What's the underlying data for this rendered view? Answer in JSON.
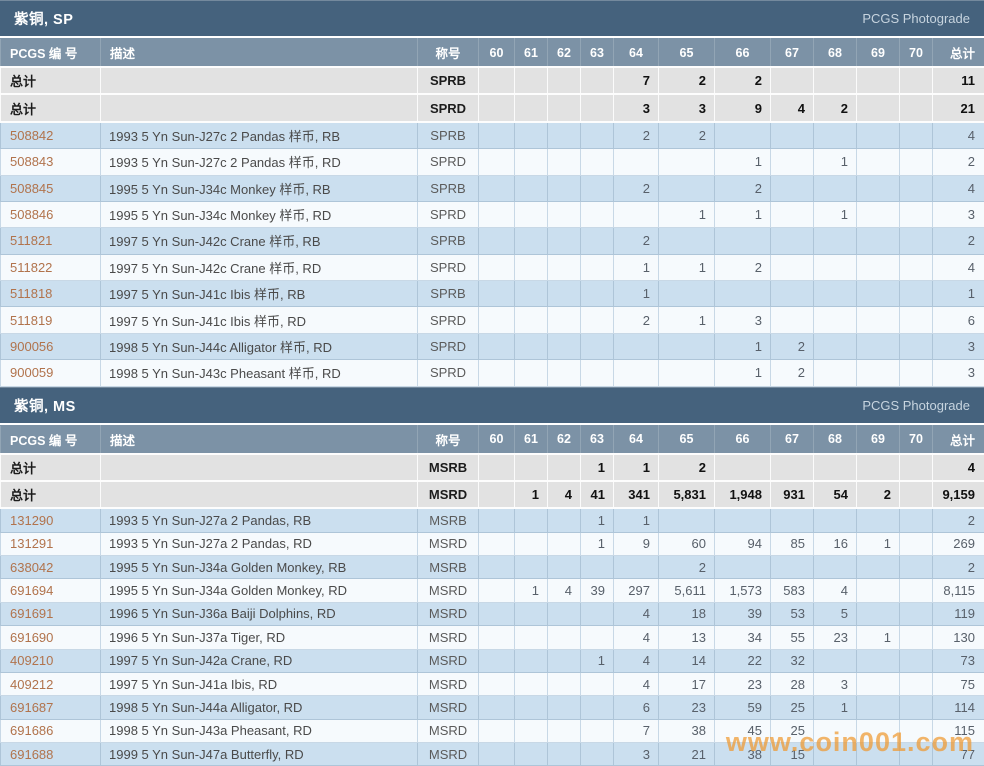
{
  "watermark": "www.coin001.com",
  "colors": {
    "section_header_bg": "#45627d",
    "column_header_bg": "#7c92a6",
    "totals_row_bg": "#e2e2e2",
    "row_blue_bg": "#cbdfef",
    "row_white_bg": "#f6fafd",
    "pcgs_number_color": "#b1734c",
    "watermark_color": "#ee982f"
  },
  "columns": [
    "PCGS 编 号",
    "描述",
    "称号",
    "60",
    "61",
    "62",
    "63",
    "64",
    "65",
    "66",
    "67",
    "68",
    "69",
    "70",
    "总计"
  ],
  "sections": [
    {
      "id": "sp",
      "title": "紫铜, SP",
      "photograde_label": "PCGS Photograde",
      "totals_label": "总计",
      "totals": [
        {
          "designation": "SPRB",
          "grades": [
            "",
            "",
            "",
            "",
            "7",
            "2",
            "2",
            "",
            "",
            "",
            ""
          ],
          "total": "11"
        },
        {
          "designation": "SPRD",
          "grades": [
            "",
            "",
            "",
            "",
            "3",
            "3",
            "9",
            "4",
            "2",
            "",
            ""
          ],
          "total": "21"
        }
      ],
      "rows": [
        {
          "pcgs_number": "508842",
          "description": "1993 5 Yn Sun-J27c 2 Pandas 样币, RB",
          "designation": "SPRB",
          "grades": [
            "",
            "",
            "",
            "",
            "2",
            "2",
            "",
            "",
            "",
            "",
            ""
          ],
          "total": "4"
        },
        {
          "pcgs_number": "508843",
          "description": "1993 5 Yn Sun-J27c 2 Pandas 样币, RD",
          "designation": "SPRD",
          "grades": [
            "",
            "",
            "",
            "",
            "",
            "",
            "1",
            "",
            "1",
            "",
            ""
          ],
          "total": "2"
        },
        {
          "pcgs_number": "508845",
          "description": "1995 5 Yn Sun-J34c Monkey 样币, RB",
          "designation": "SPRB",
          "grades": [
            "",
            "",
            "",
            "",
            "2",
            "",
            "2",
            "",
            "",
            "",
            ""
          ],
          "total": "4"
        },
        {
          "pcgs_number": "508846",
          "description": "1995 5 Yn Sun-J34c Monkey 样币, RD",
          "designation": "SPRD",
          "grades": [
            "",
            "",
            "",
            "",
            "",
            "1",
            "1",
            "",
            "1",
            "",
            ""
          ],
          "total": "3"
        },
        {
          "pcgs_number": "511821",
          "description": "1997 5 Yn Sun-J42c Crane 样币, RB",
          "designation": "SPRB",
          "grades": [
            "",
            "",
            "",
            "",
            "2",
            "",
            "",
            "",
            "",
            "",
            ""
          ],
          "total": "2"
        },
        {
          "pcgs_number": "511822",
          "description": "1997 5 Yn Sun-J42c Crane 样币, RD",
          "designation": "SPRD",
          "grades": [
            "",
            "",
            "",
            "",
            "1",
            "1",
            "2",
            "",
            "",
            "",
            ""
          ],
          "total": "4"
        },
        {
          "pcgs_number": "511818",
          "description": "1997 5 Yn Sun-J41c Ibis 样币, RB",
          "designation": "SPRB",
          "grades": [
            "",
            "",
            "",
            "",
            "1",
            "",
            "",
            "",
            "",
            "",
            ""
          ],
          "total": "1"
        },
        {
          "pcgs_number": "511819",
          "description": "1997 5 Yn Sun-J41c Ibis 样币, RD",
          "designation": "SPRD",
          "grades": [
            "",
            "",
            "",
            "",
            "2",
            "1",
            "3",
            "",
            "",
            "",
            ""
          ],
          "total": "6"
        },
        {
          "pcgs_number": "900056",
          "description": "1998 5 Yn Sun-J44c Alligator 样币, RD",
          "designation": "SPRD",
          "grades": [
            "",
            "",
            "",
            "",
            "",
            "",
            "1",
            "2",
            "",
            "",
            ""
          ],
          "total": "3"
        },
        {
          "pcgs_number": "900059",
          "description": "1998 5 Yn Sun-J43c Pheasant 样币, RD",
          "designation": "SPRD",
          "grades": [
            "",
            "",
            "",
            "",
            "",
            "",
            "1",
            "2",
            "",
            "",
            ""
          ],
          "total": "3"
        }
      ]
    },
    {
      "id": "ms",
      "title": "紫铜, MS",
      "photograde_label": "PCGS Photograde",
      "totals_label": "总计",
      "totals": [
        {
          "designation": "MSRB",
          "grades": [
            "",
            "",
            "",
            "1",
            "1",
            "2",
            "",
            "",
            "",
            "",
            ""
          ],
          "total": "4"
        },
        {
          "designation": "MSRD",
          "grades": [
            "",
            "1",
            "4",
            "41",
            "341",
            "5,831",
            "1,948",
            "931",
            "54",
            "2",
            ""
          ],
          "total": "9,159"
        }
      ],
      "rows": [
        {
          "pcgs_number": "131290",
          "description": "1993 5 Yn Sun-J27a 2 Pandas, RB",
          "designation": "MSRB",
          "grades": [
            "",
            "",
            "",
            "1",
            "1",
            "",
            "",
            "",
            "",
            "",
            ""
          ],
          "total": "2"
        },
        {
          "pcgs_number": "131291",
          "description": "1993 5 Yn Sun-J27a 2 Pandas, RD",
          "designation": "MSRD",
          "grades": [
            "",
            "",
            "",
            "1",
            "9",
            "60",
            "94",
            "85",
            "16",
            "1",
            ""
          ],
          "total": "269"
        },
        {
          "pcgs_number": "638042",
          "description": "1995 5 Yn Sun-J34a Golden Monkey, RB",
          "designation": "MSRB",
          "grades": [
            "",
            "",
            "",
            "",
            "",
            "2",
            "",
            "",
            "",
            "",
            ""
          ],
          "total": "2"
        },
        {
          "pcgs_number": "691694",
          "description": "1995 5 Yn Sun-J34a Golden Monkey, RD",
          "designation": "MSRD",
          "grades": [
            "",
            "1",
            "4",
            "39",
            "297",
            "5,611",
            "1,573",
            "583",
            "4",
            "",
            ""
          ],
          "total": "8,115"
        },
        {
          "pcgs_number": "691691",
          "description": "1996 5 Yn Sun-J36a Baiji Dolphins, RD",
          "designation": "MSRD",
          "grades": [
            "",
            "",
            "",
            "",
            "4",
            "18",
            "39",
            "53",
            "5",
            "",
            ""
          ],
          "total": "119"
        },
        {
          "pcgs_number": "691690",
          "description": "1996 5 Yn Sun-J37a Tiger, RD",
          "designation": "MSRD",
          "grades": [
            "",
            "",
            "",
            "",
            "4",
            "13",
            "34",
            "55",
            "23",
            "1",
            ""
          ],
          "total": "130"
        },
        {
          "pcgs_number": "409210",
          "description": "1997 5 Yn Sun-J42a Crane, RD",
          "designation": "MSRD",
          "grades": [
            "",
            "",
            "",
            "1",
            "4",
            "14",
            "22",
            "32",
            "",
            "",
            ""
          ],
          "total": "73"
        },
        {
          "pcgs_number": "409212",
          "description": "1997 5 Yn Sun-J41a Ibis, RD",
          "designation": "MSRD",
          "grades": [
            "",
            "",
            "",
            "",
            "4",
            "17",
            "23",
            "28",
            "3",
            "",
            ""
          ],
          "total": "75"
        },
        {
          "pcgs_number": "691687",
          "description": "1998 5 Yn Sun-J44a Alligator, RD",
          "designation": "MSRD",
          "grades": [
            "",
            "",
            "",
            "",
            "6",
            "23",
            "59",
            "25",
            "1",
            "",
            ""
          ],
          "total": "114"
        },
        {
          "pcgs_number": "691686",
          "description": "1998 5 Yn Sun-J43a Pheasant, RD",
          "designation": "MSRD",
          "grades": [
            "",
            "",
            "",
            "",
            "7",
            "38",
            "45",
            "25",
            "",
            "",
            ""
          ],
          "total": "115"
        },
        {
          "pcgs_number": "691688",
          "description": "1999 5 Yn Sun-J47a Butterfly, RD",
          "designation": "MSRD",
          "grades": [
            "",
            "",
            "",
            "",
            "3",
            "21",
            "38",
            "15",
            "",
            "",
            ""
          ],
          "total": "77"
        }
      ]
    }
  ]
}
